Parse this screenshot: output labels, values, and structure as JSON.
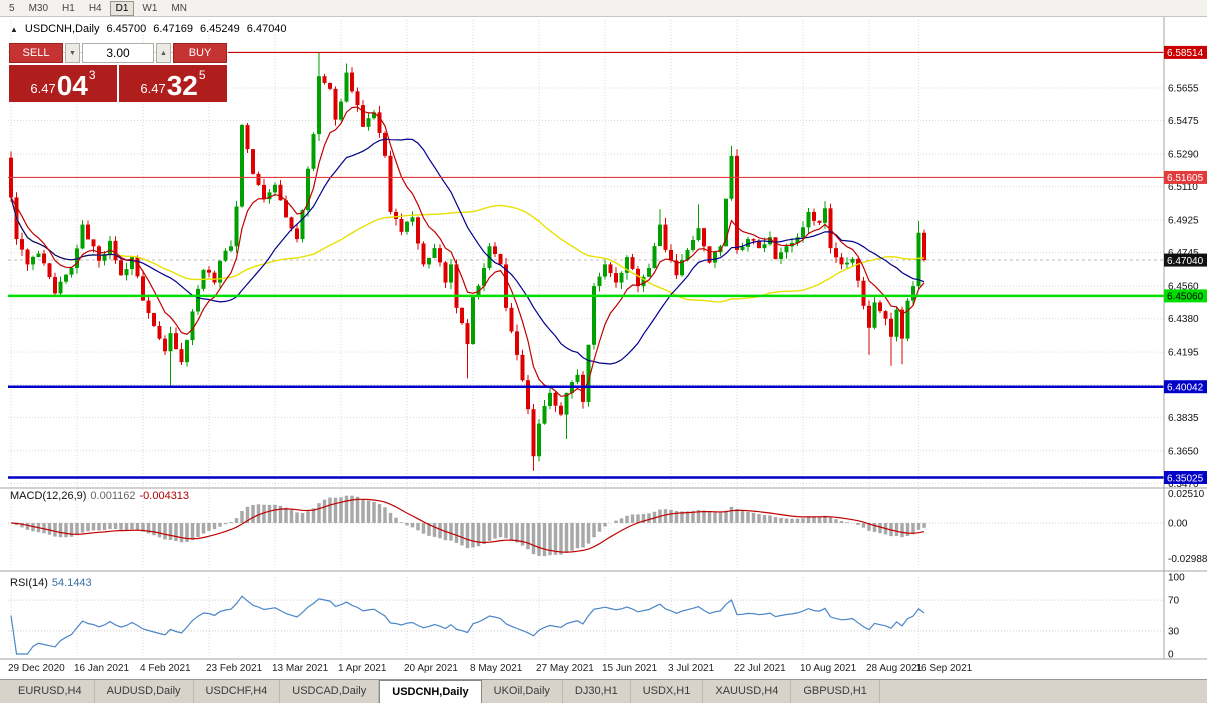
{
  "window": {
    "timeframes": [
      "5",
      "M30",
      "H1",
      "H4",
      "D1",
      "W1",
      "MN"
    ],
    "active_timeframe": "D1"
  },
  "icons": {
    "collapse": "▲",
    "spin_up": "▲",
    "spin_down": "▼"
  },
  "header": {
    "symbol": "USDCNH,Daily",
    "open": "6.45700",
    "high": "6.47169",
    "low": "6.45249",
    "close": "6.47040"
  },
  "trade_panel": {
    "sell_label": "SELL",
    "buy_label": "BUY",
    "volume": "3.00",
    "bid": {
      "base": "6.47",
      "big": "04",
      "sup": "3"
    },
    "ask": {
      "base": "6.47",
      "big": "32",
      "sup": "5"
    }
  },
  "price_axis": {
    "ticks": [
      "6.5655",
      "6.5475",
      "6.5290",
      "6.5110",
      "6.4925",
      "6.4745",
      "6.4560",
      "6.4380",
      "6.4195",
      "6.4015",
      "6.3835",
      "6.3650",
      "6.3470"
    ]
  },
  "hlines": [
    {
      "name": "resistance-line-upper",
      "label": "6.58514",
      "price": 6.58514,
      "color": "#cc0000",
      "width": 1.2,
      "text_color": "#ffffff"
    },
    {
      "name": "resistance-line-lower",
      "label": "6.51605",
      "price": 6.51605,
      "color": "#e23b3b",
      "width": 1.2,
      "text_color": "#ffffff"
    },
    {
      "name": "support-line-green",
      "label": "6.45060",
      "price": 6.4506,
      "color": "#00dd00",
      "width": 2.5,
      "text_color": "#000000"
    },
    {
      "name": "support-line-blue-upper",
      "label": "6.40042",
      "price": 6.40042,
      "color": "#0000c8",
      "width": 2.5,
      "text_color": "#ffffff"
    },
    {
      "name": "support-line-blue-lower",
      "label": "6.35025",
      "price": 6.35025,
      "color": "#0000c8",
      "width": 2.5,
      "text_color": "#ffffff"
    }
  ],
  "current_price": {
    "label": "6.47040",
    "value": 6.4704
  },
  "macd": {
    "label": "MACD(12,26,9)",
    "value_main": "0.001162",
    "value_signal": "-0.004313",
    "axis": [
      "0.02510",
      "0.00",
      "-0.02988"
    ]
  },
  "rsi": {
    "label": "RSI(14)",
    "value": "54.1443",
    "axis": [
      "100",
      "70",
      "30",
      "0"
    ],
    "levels": [
      70,
      30
    ]
  },
  "tabs": [
    {
      "label": "EURUSD,H4"
    },
    {
      "label": "AUDUSD,Daily"
    },
    {
      "label": "USDCHF,H4"
    },
    {
      "label": "USDCAD,Daily"
    },
    {
      "label": "USDCNH,Daily",
      "active": true
    },
    {
      "label": "UKOil,Daily"
    },
    {
      "label": "DJ30,H1"
    },
    {
      "label": "USDX,H1"
    },
    {
      "label": "XAUUSD,H4"
    },
    {
      "label": "GBPUSD,H1"
    }
  ],
  "chart_data": {
    "type": "candlestick",
    "symbol": "USDCNH",
    "timeframe": "Daily",
    "candle_count": 167,
    "first_open": 6.527,
    "price_range": [
      6.345,
      6.592
    ],
    "close_anchors": [
      [
        0,
        6.505
      ],
      [
        1,
        6.482
      ],
      [
        3,
        6.468
      ],
      [
        5,
        6.474
      ],
      [
        8,
        6.452
      ],
      [
        11,
        6.466
      ],
      [
        13,
        6.49
      ],
      [
        16,
        6.47
      ],
      [
        18,
        6.481
      ],
      [
        20,
        6.462
      ],
      [
        22,
        6.472
      ],
      [
        24,
        6.448
      ],
      [
        26,
        6.434
      ],
      [
        28,
        6.42
      ],
      [
        29,
        6.43
      ],
      [
        31,
        6.414
      ],
      [
        33,
        6.442
      ],
      [
        35,
        6.465
      ],
      [
        37,
        6.458
      ],
      [
        38,
        6.47
      ],
      [
        40,
        6.478
      ],
      [
        41,
        6.5
      ],
      [
        42,
        6.545
      ],
      [
        44,
        6.518
      ],
      [
        46,
        6.504
      ],
      [
        48,
        6.512
      ],
      [
        50,
        6.494
      ],
      [
        52,
        6.482
      ],
      [
        53,
        6.498
      ],
      [
        55,
        6.54
      ],
      [
        56,
        6.572
      ],
      [
        58,
        6.565
      ],
      [
        59,
        6.548
      ],
      [
        60,
        6.558
      ],
      [
        61,
        6.574
      ],
      [
        63,
        6.556
      ],
      [
        64,
        6.544
      ],
      [
        66,
        6.552
      ],
      [
        68,
        6.528
      ],
      [
        69,
        6.497
      ],
      [
        71,
        6.486
      ],
      [
        73,
        6.494
      ],
      [
        75,
        6.468
      ],
      [
        77,
        6.477
      ],
      [
        79,
        6.458
      ],
      [
        80,
        6.468
      ],
      [
        81,
        6.444
      ],
      [
        83,
        6.424
      ],
      [
        84,
        6.45
      ],
      [
        86,
        6.466
      ],
      [
        87,
        6.478
      ],
      [
        89,
        6.468
      ],
      [
        90,
        6.444
      ],
      [
        92,
        6.418
      ],
      [
        94,
        6.388
      ],
      [
        95,
        6.362
      ],
      [
        96,
        6.38
      ],
      [
        98,
        6.397
      ],
      [
        100,
        6.385
      ],
      [
        101,
        6.397
      ],
      [
        103,
        6.407
      ],
      [
        104,
        6.392
      ],
      [
        106,
        6.456
      ],
      [
        108,
        6.468
      ],
      [
        110,
        6.458
      ],
      [
        112,
        6.472
      ],
      [
        114,
        6.456
      ],
      [
        116,
        6.466
      ],
      [
        118,
        6.49
      ],
      [
        119,
        6.476
      ],
      [
        121,
        6.462
      ],
      [
        123,
        6.476
      ],
      [
        125,
        6.488
      ],
      [
        127,
        6.469
      ],
      [
        129,
        6.478
      ],
      [
        131,
        6.528
      ],
      [
        132,
        6.476
      ],
      [
        134,
        6.482
      ],
      [
        136,
        6.477
      ],
      [
        138,
        6.483
      ],
      [
        139,
        6.471
      ],
      [
        141,
        6.478
      ],
      [
        143,
        6.483
      ],
      [
        145,
        6.497
      ],
      [
        147,
        6.491
      ],
      [
        148,
        6.499
      ],
      [
        149,
        6.477
      ],
      [
        151,
        6.468
      ],
      [
        153,
        6.471
      ],
      [
        154,
        6.459
      ],
      [
        156,
        6.433
      ],
      [
        157,
        6.447
      ],
      [
        159,
        6.438
      ],
      [
        160,
        6.428
      ],
      [
        161,
        6.443
      ],
      [
        162,
        6.427
      ],
      [
        163,
        6.448
      ],
      [
        164,
        6.456
      ],
      [
        165,
        6.4855
      ],
      [
        166,
        6.4704
      ]
    ],
    "wick_overrides": [
      {
        "i": 29,
        "low": 6.4005
      },
      {
        "i": 56,
        "high": 6.585
      },
      {
        "i": 61,
        "high": 6.579
      },
      {
        "i": 83,
        "low": 6.405
      },
      {
        "i": 95,
        "low": 6.354
      },
      {
        "i": 101,
        "low": 6.3715
      },
      {
        "i": 118,
        "high": 6.4985
      },
      {
        "i": 125,
        "high": 6.5012
      },
      {
        "i": 131,
        "high": 6.5335
      },
      {
        "i": 148,
        "high": 6.503
      },
      {
        "i": 156,
        "low": 6.418
      },
      {
        "i": 160,
        "low": 6.412
      },
      {
        "i": 162,
        "low": 6.4128
      },
      {
        "i": 165,
        "high": 6.4921
      }
    ],
    "dates": [
      {
        "label": "29 Dec 2020",
        "i": 0
      },
      {
        "label": "16 Jan 2021",
        "i": 12
      },
      {
        "label": "4 Feb 2021",
        "i": 24
      },
      {
        "label": "23 Feb 2021",
        "i": 36
      },
      {
        "label": "13 Mar 2021",
        "i": 48
      },
      {
        "label": "1 Apr 2021",
        "i": 60
      },
      {
        "label": "20 Apr 2021",
        "i": 72
      },
      {
        "label": "8 May 2021",
        "i": 84
      },
      {
        "label": "27 May 2021",
        "i": 96
      },
      {
        "label": "15 Jun 2021",
        "i": 108
      },
      {
        "label": "3 Jul 2021",
        "i": 120
      },
      {
        "label": "22 Jul 2021",
        "i": 132
      },
      {
        "label": "10 Aug 2021",
        "i": 144
      },
      {
        "label": "28 Aug 2021",
        "i": 156
      },
      {
        "label": "16 Sep 2021",
        "i": 165
      }
    ],
    "moving_averages": [
      {
        "period": 8,
        "method": "ema",
        "color_key": "ma_fast"
      },
      {
        "period": 20,
        "method": "sma",
        "color_key": "ma_mid"
      },
      {
        "period": 55,
        "method": "sma",
        "color_key": "ma_slow"
      }
    ],
    "macd_params": [
      12,
      26,
      9
    ],
    "rsi_period": 14,
    "colors": {
      "up": "#00a000",
      "down": "#de0000",
      "ma_fast": "#c00000",
      "ma_mid": "#00008b",
      "ma_slow": "#e8e000",
      "macd_hist": "#a8a8a8",
      "macd_signal": "#c00000",
      "rsi": "#4a86c8",
      "grid": "#d9d9d9"
    }
  }
}
